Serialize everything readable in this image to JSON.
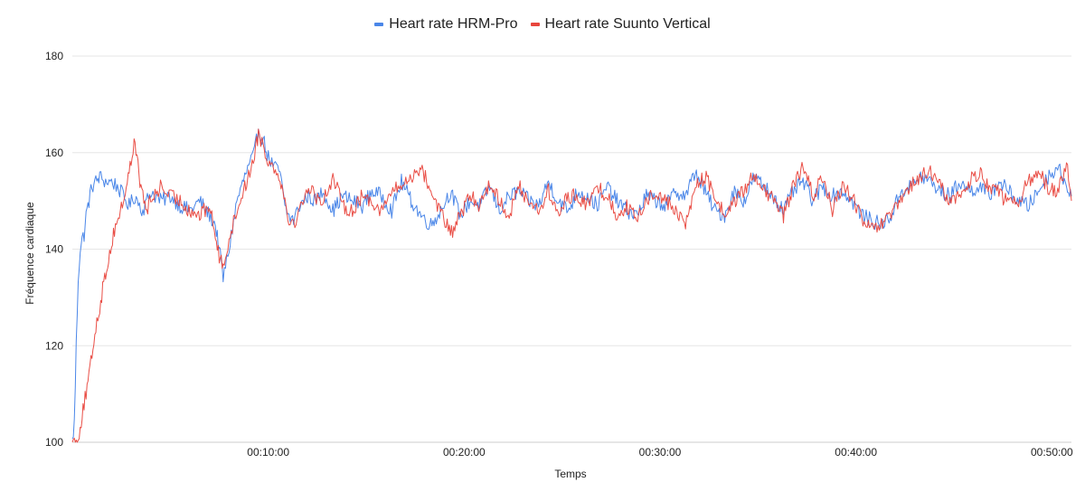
{
  "chart_data": {
    "type": "line",
    "title": "",
    "xlabel": "Temps",
    "ylabel": "Fréquence cardiaque",
    "ylim": [
      100,
      180
    ],
    "y_ticks": [
      "100",
      "120",
      "140",
      "160",
      "180"
    ],
    "xlim_minutes": [
      0,
      51
    ],
    "x_ticks": [
      {
        "minute": 10,
        "label": "00:10:00"
      },
      {
        "minute": 20,
        "label": "00:20:00"
      },
      {
        "minute": 30,
        "label": "00:30:00"
      },
      {
        "minute": 40,
        "label": "00:40:00"
      },
      {
        "minute": 50,
        "label": "00:50:00"
      }
    ],
    "grid": true,
    "legend_position": "top-center",
    "series": [
      {
        "name": "Heart rate HRM-Pro",
        "color": "#4a86e8",
        "x": [
          0,
          0.1,
          0.2,
          0.3,
          0.4,
          0.5,
          0.6,
          0.7,
          0.8,
          0.9,
          1,
          1.2,
          1.4,
          1.7,
          2,
          2.3,
          2.6,
          2.9,
          3.2,
          3.6,
          4,
          4.5,
          5,
          5.5,
          6,
          6.5,
          7,
          7.3,
          7.5,
          7.7,
          8,
          8.4,
          8.8,
          9,
          9.3,
          9.5,
          9.8,
          10,
          10.3,
          10.6,
          10.8,
          11,
          11.3,
          11.6,
          12,
          12.4,
          12.8,
          13.3,
          13.8,
          14.3,
          14.8,
          15.3,
          15.8,
          16.3,
          16.8,
          17.3,
          17.8,
          18.3,
          18.8,
          19.3,
          19.8,
          20.3,
          20.8,
          21.3,
          21.8,
          22.3,
          22.8,
          23.3,
          23.8,
          24.3,
          24.8,
          25.3,
          25.8,
          26.3,
          26.8,
          27.3,
          27.8,
          28.3,
          28.8,
          29.3,
          29.8,
          30.3,
          30.8,
          31.3,
          31.8,
          32.3,
          32.8,
          33.3,
          33.8,
          34.3,
          34.8,
          35.3,
          35.8,
          36.3,
          36.8,
          37.3,
          37.8,
          38.3,
          38.8,
          39.3,
          39.8,
          40.3,
          40.8,
          41.3,
          41.8,
          42.3,
          42.8,
          43.3,
          43.8,
          44.3,
          44.8,
          45.3,
          45.8,
          46.3,
          46.8,
          47.3,
          47.8,
          48.3,
          48.8,
          49.3,
          49.8,
          50.3,
          50.8,
          51
        ],
        "values": [
          100,
          104,
          120,
          134,
          140,
          142,
          143,
          147,
          149,
          151,
          153,
          154,
          155,
          154,
          154,
          153,
          151,
          149,
          151,
          148,
          152,
          150,
          151,
          149,
          148,
          150,
          147,
          145,
          140,
          134,
          140,
          150,
          155,
          157,
          160,
          165,
          162,
          159,
          157,
          156,
          150,
          147,
          146,
          149,
          151,
          150,
          152,
          148,
          151,
          150,
          149,
          152,
          151,
          148,
          154,
          150,
          147,
          145,
          148,
          152,
          147,
          150,
          149,
          153,
          148,
          151,
          152,
          150,
          149,
          154,
          150,
          148,
          152,
          151,
          149,
          153,
          150,
          148,
          147,
          151,
          150,
          149,
          152,
          151,
          156,
          152,
          148,
          147,
          152,
          150,
          155,
          153,
          151,
          148,
          152,
          154,
          150,
          153,
          151,
          152,
          150,
          147,
          146,
          145,
          147,
          152,
          153,
          155,
          154,
          152,
          151,
          154,
          152,
          153,
          151,
          154,
          152,
          150,
          149,
          152,
          155,
          157,
          153,
          151
        ]
      },
      {
        "name": "Heart rate Suunto Vertical",
        "color": "#e8453c",
        "x": [
          0,
          0.2,
          0.4,
          0.6,
          0.8,
          1,
          1.2,
          1.4,
          1.6,
          1.8,
          2,
          2.2,
          2.4,
          2.6,
          2.8,
          3,
          3.2,
          3.4,
          3.6,
          3.8,
          4,
          4.5,
          5,
          5.5,
          6,
          6.5,
          7,
          7.3,
          7.5,
          7.7,
          8,
          8.4,
          8.8,
          9,
          9.3,
          9.5,
          9.8,
          10,
          10.3,
          10.6,
          10.8,
          11,
          11.3,
          11.6,
          12,
          12.4,
          12.8,
          13.3,
          13.8,
          14.3,
          14.8,
          15.3,
          15.8,
          16.3,
          16.8,
          17.3,
          17.8,
          18.3,
          18.8,
          19.3,
          19.8,
          20.3,
          20.8,
          21.3,
          21.8,
          22.3,
          22.8,
          23.3,
          23.8,
          24.3,
          24.8,
          25.3,
          25.8,
          26.3,
          26.8,
          27.3,
          27.8,
          28.3,
          28.8,
          29.3,
          29.8,
          30.3,
          30.8,
          31.3,
          31.8,
          32.3,
          32.8,
          33.3,
          33.8,
          34.3,
          34.8,
          35.3,
          35.8,
          36.3,
          36.8,
          37.3,
          37.8,
          38.3,
          38.8,
          39.3,
          39.8,
          40.3,
          40.8,
          41.3,
          41.8,
          42.3,
          42.8,
          43.3,
          43.8,
          44.3,
          44.8,
          45.3,
          45.8,
          46.3,
          46.8,
          47.3,
          47.8,
          48.3,
          48.8,
          49.3,
          49.8,
          50.3,
          50.8,
          51
        ],
        "values": [
          100,
          100,
          103,
          108,
          112,
          118,
          124,
          128,
          133,
          137,
          141,
          145,
          147,
          150,
          154,
          158,
          163,
          155,
          151,
          148,
          150,
          153,
          151,
          150,
          148,
          147,
          149,
          143,
          138,
          137,
          142,
          148,
          153,
          155,
          160,
          164,
          161,
          158,
          157,
          155,
          151,
          147,
          145,
          148,
          153,
          151,
          150,
          155,
          149,
          148,
          151,
          150,
          148,
          152,
          153,
          155,
          157,
          152,
          148,
          143,
          147,
          151,
          149,
          154,
          150,
          147,
          153,
          150,
          148,
          152,
          147,
          151,
          151,
          149,
          153,
          151,
          147,
          149,
          146,
          150,
          152,
          150,
          148,
          145,
          153,
          155,
          151,
          147,
          150,
          152,
          156,
          152,
          150,
          147,
          153,
          157,
          151,
          155,
          148,
          153,
          151,
          146,
          144,
          145,
          147,
          150,
          153,
          155,
          156,
          153,
          150,
          151,
          154,
          156,
          153,
          152,
          149,
          150,
          154,
          156,
          153,
          152,
          157,
          150
        ]
      }
    ]
  }
}
